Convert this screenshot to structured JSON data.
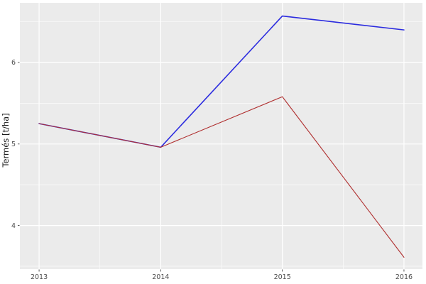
{
  "chart_data": {
    "type": "line",
    "x": [
      2013,
      2014,
      2015,
      2016
    ],
    "xtick_labels": [
      "2013",
      "2014",
      "2015",
      "2016"
    ],
    "yticks": [
      4,
      5,
      6
    ],
    "ytick_labels": [
      "4",
      "5",
      "6"
    ],
    "series": [
      {
        "name": "series_blue",
        "color": "#2b2bdf",
        "values": [
          5.25,
          4.96,
          6.57,
          6.4
        ]
      },
      {
        "name": "series_red",
        "color": "#b03030",
        "values": [
          5.25,
          4.96,
          5.58,
          3.61
        ]
      }
    ],
    "title": "",
    "xlabel": "",
    "ylabel": "Termés [t/ha]",
    "xlim": [
      2012.842,
      2016.152
    ],
    "ylim": [
      3.465,
      6.732
    ],
    "grid": "major-minor",
    "legend": "none",
    "panel_bg": "#ebebeb",
    "grid_color": "#ffffff",
    "tick_text_color": "#4d4d4d",
    "axis_title_color": "#1a1a1a",
    "tick_mark_color": "#333333"
  }
}
